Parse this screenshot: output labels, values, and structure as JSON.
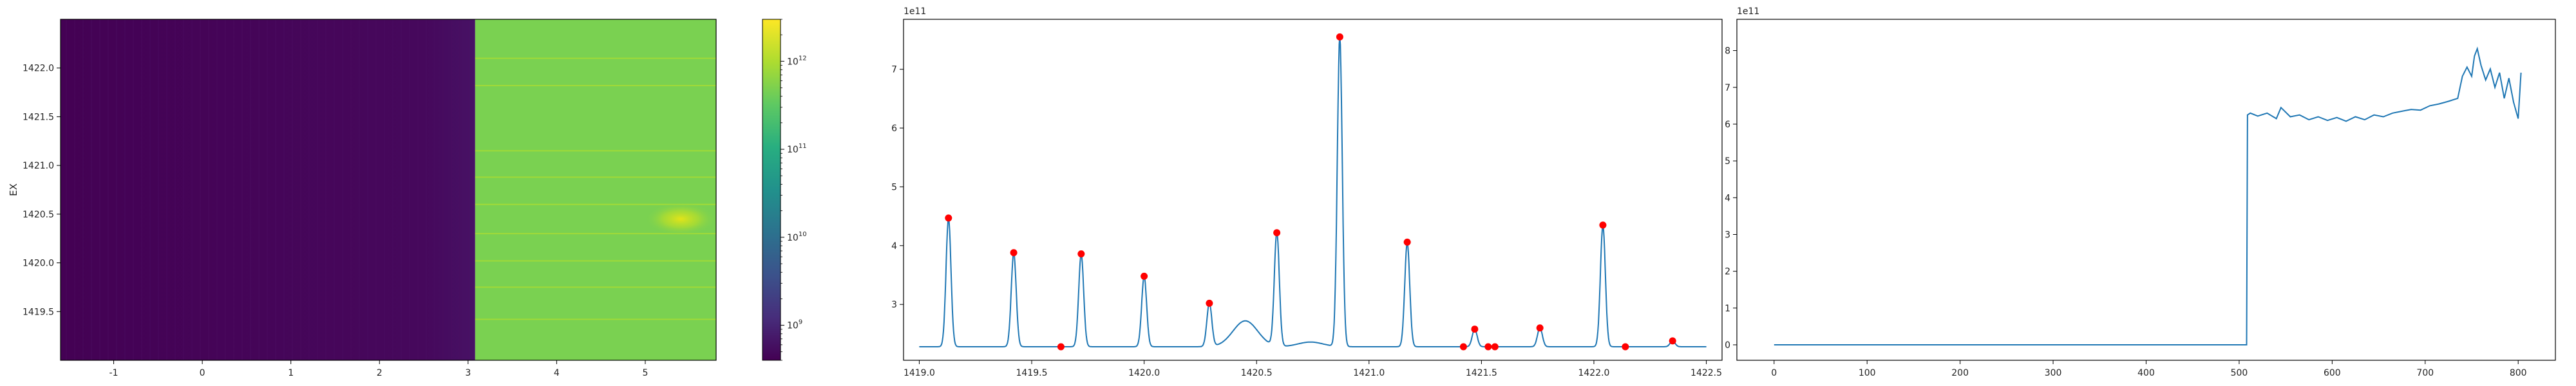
{
  "chart_data": [
    {
      "type": "heatmap",
      "title": "",
      "xlabel": "",
      "ylabel": "EX",
      "xlim": [
        -1.6,
        5.8
      ],
      "ylim": [
        1419.0,
        1422.5
      ],
      "x_ticks": [
        "-1",
        "0",
        "1",
        "2",
        "3",
        "4",
        "5"
      ],
      "y_ticks": [
        "1419.5",
        "1420.0",
        "1420.5",
        "1421.0",
        "1421.5",
        "1422.0"
      ],
      "regions": [
        {
          "x_range": [
            -1.6,
            3.08
          ],
          "level": "~1e9 (low)",
          "color": "#440154"
        },
        {
          "x_range": [
            3.08,
            5.8
          ],
          "level": "~1e12 (high)",
          "color": "#7ad151"
        }
      ],
      "hot_spot": {
        "x": 5.4,
        "y": 1420.45
      },
      "colorbar": {
        "scale": "log",
        "range": [
          400000000,
          3000000000000
        ],
        "tick_labels": [
          "10^9",
          "10^10",
          "10^11",
          "10^12"
        ],
        "colormap": "viridis"
      }
    },
    {
      "type": "line",
      "title": "",
      "offset_label": "1e11",
      "xlabel": "",
      "ylabel": "",
      "xlim": [
        1418.93,
        1422.57
      ],
      "ylim": [
        2.05,
        7.85
      ],
      "x_ticks": [
        1419.0,
        1419.5,
        1420.0,
        1420.5,
        1421.0,
        1421.5,
        1422.0,
        1422.5
      ],
      "y_ticks": [
        3,
        4,
        5,
        6,
        7
      ],
      "line_color": "#1f77b4",
      "marker_color": "#ff0000",
      "baseline": 2.28,
      "peaks": [
        {
          "x": 1419.13,
          "y": 4.47
        },
        {
          "x": 1419.42,
          "y": 3.88
        },
        {
          "x": 1419.72,
          "y": 3.86
        },
        {
          "x": 1420.0,
          "y": 3.48
        },
        {
          "x": 1420.29,
          "y": 3.02
        },
        {
          "x": 1420.59,
          "y": 4.22
        },
        {
          "x": 1420.87,
          "y": 7.55
        },
        {
          "x": 1421.17,
          "y": 4.06
        },
        {
          "x": 1421.47,
          "y": 2.58
        },
        {
          "x": 1421.76,
          "y": 2.6
        },
        {
          "x": 1422.04,
          "y": 4.35
        },
        {
          "x": 1422.35,
          "y": 2.38
        }
      ],
      "bumps": [
        {
          "x": 1420.45,
          "y": 2.72
        },
        {
          "x": 1420.74,
          "y": 2.36
        }
      ],
      "markers": [
        {
          "x": 1419.13,
          "y": 4.47
        },
        {
          "x": 1419.42,
          "y": 3.88
        },
        {
          "x": 1419.63,
          "y": 2.28
        },
        {
          "x": 1419.72,
          "y": 3.86
        },
        {
          "x": 1420.0,
          "y": 3.48
        },
        {
          "x": 1420.29,
          "y": 3.02
        },
        {
          "x": 1420.59,
          "y": 4.22
        },
        {
          "x": 1420.87,
          "y": 7.55
        },
        {
          "x": 1421.17,
          "y": 4.06
        },
        {
          "x": 1421.42,
          "y": 2.28
        },
        {
          "x": 1421.47,
          "y": 2.58
        },
        {
          "x": 1421.53,
          "y": 2.28
        },
        {
          "x": 1421.56,
          "y": 2.28
        },
        {
          "x": 1421.76,
          "y": 2.6
        },
        {
          "x": 1422.04,
          "y": 4.35
        },
        {
          "x": 1422.14,
          "y": 2.28
        },
        {
          "x": 1422.35,
          "y": 2.38
        }
      ]
    },
    {
      "type": "line",
      "title": "",
      "offset_label": "1e11",
      "xlabel": "",
      "ylabel": "",
      "xlim": [
        -40,
        840
      ],
      "ylim": [
        -0.42,
        8.85
      ],
      "x_ticks": [
        0,
        100,
        200,
        300,
        400,
        500,
        600,
        700,
        800
      ],
      "y_ticks": [
        0,
        1,
        2,
        3,
        4,
        5,
        6,
        7,
        8
      ],
      "line_color": "#1f77b4",
      "series": [
        {
          "x": [
            0,
            508,
            509,
            512,
            520,
            530,
            540,
            545,
            555,
            565,
            575,
            585,
            595,
            605,
            615,
            625,
            635,
            645,
            655,
            665,
            675,
            685,
            695,
            705,
            715,
            725,
            735,
            740,
            745,
            750,
            753,
            756,
            760,
            765,
            770,
            775,
            780,
            785,
            790,
            795,
            800,
            803
          ],
          "y": [
            0,
            0,
            6.25,
            6.3,
            6.22,
            6.3,
            6.15,
            6.45,
            6.2,
            6.25,
            6.12,
            6.2,
            6.1,
            6.18,
            6.08,
            6.2,
            6.12,
            6.25,
            6.2,
            6.3,
            6.35,
            6.4,
            6.38,
            6.5,
            6.55,
            6.62,
            6.7,
            7.3,
            7.55,
            7.3,
            7.85,
            8.05,
            7.6,
            7.2,
            7.5,
            7.0,
            7.4,
            6.7,
            7.25,
            6.6,
            6.15,
            7.4
          ]
        }
      ]
    }
  ]
}
